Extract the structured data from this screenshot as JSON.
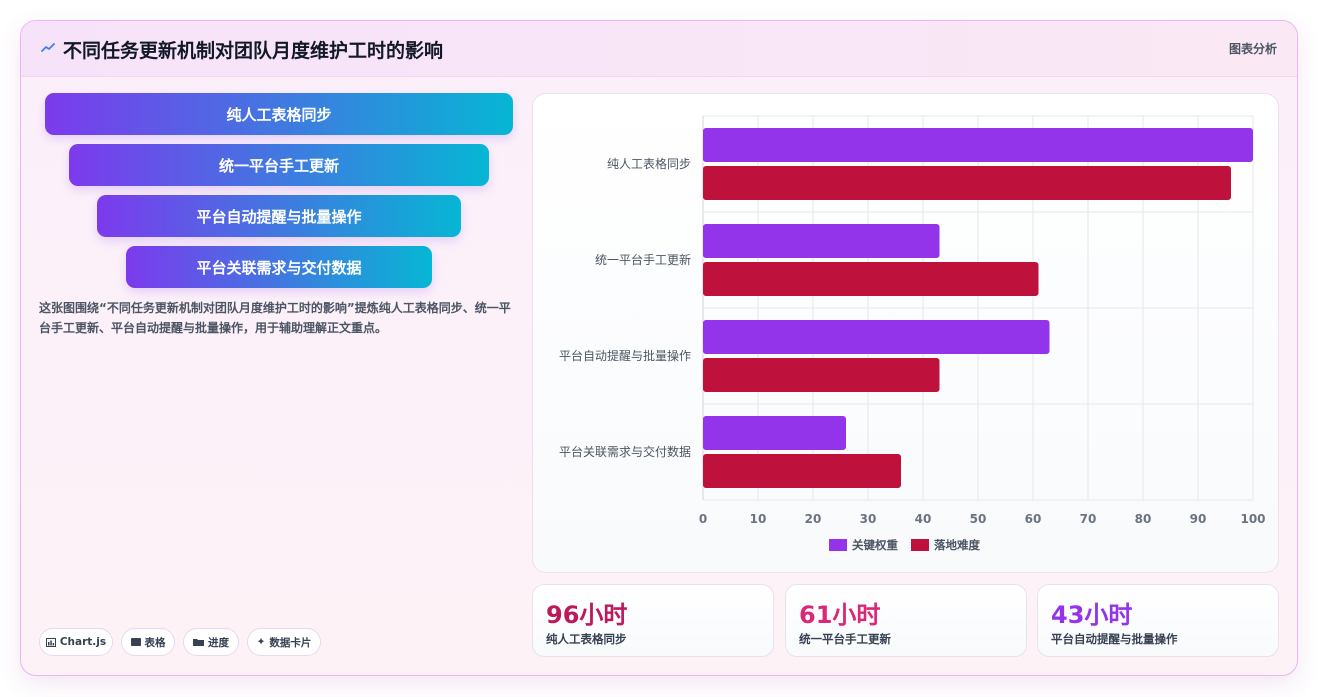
{
  "header": {
    "title": "不同任务更新机制对团队月度维护工时的影响",
    "tag": "图表分析",
    "icon": "trend-icon"
  },
  "funnel": {
    "items": [
      "纯人工表格同步",
      "统一平台手工更新",
      "平台自动提醒与批量操作",
      "平台关联需求与交付数据"
    ]
  },
  "description": "这张图围绕“不同任务更新机制对团队月度维护工时的影响”提炼纯人工表格同步、统一平台手工更新、平台自动提醒与批量操作，用于辅助理解正文重点。",
  "chips": [
    {
      "icon": "chart-icon",
      "label": "Chart.js"
    },
    {
      "icon": "table-icon",
      "label": "表格"
    },
    {
      "icon": "progress-icon",
      "label": "进度"
    },
    {
      "icon": "card-icon",
      "label": "数据卡片"
    }
  ],
  "chart_data": {
    "type": "bar",
    "orientation": "horizontal",
    "categories": [
      "纯人工表格同步",
      "统一平台手工更新",
      "平台自动提醒与批量操作",
      "平台关联需求与交付数据"
    ],
    "series": [
      {
        "name": "关键权重",
        "color": "#9333ea",
        "values": [
          100,
          43,
          63,
          26
        ]
      },
      {
        "name": "落地难度",
        "color": "#be123c",
        "values": [
          96,
          61,
          43,
          36
        ]
      }
    ],
    "xlim": [
      0,
      100
    ],
    "xticks": [
      0,
      10,
      20,
      30,
      40,
      50,
      60,
      70,
      80,
      90,
      100
    ],
    "grid": true,
    "legend": "bottom"
  },
  "stats": [
    {
      "value": "96小时",
      "label": "纯人工表格同步",
      "color": "#be185d"
    },
    {
      "value": "61小时",
      "label": "统一平台手工更新",
      "color": "#db2777"
    },
    {
      "value": "43小时",
      "label": "平台自动提醒与批量操作",
      "color": "#9333ea"
    }
  ]
}
